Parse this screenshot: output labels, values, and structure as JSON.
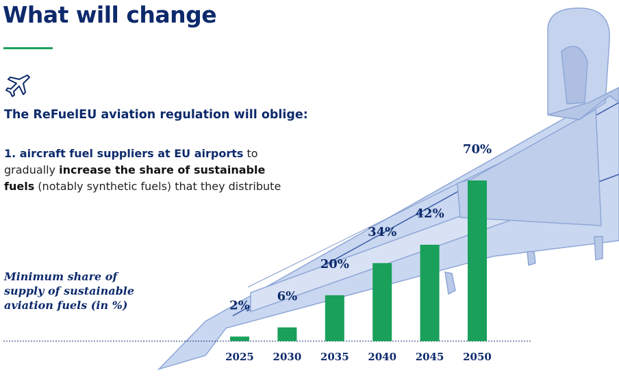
{
  "header": {
    "title": "What will change"
  },
  "intro": "The ReFuelEU aviation regulation will oblige:",
  "paragraph": {
    "p1": "1. aircraft fuel suppliers at EU airports",
    "p2": " to gradually ",
    "p3": "increase the share of sustainable fuels",
    "p4": " (notably synthetic fuels) that they distribute"
  },
  "colors": {
    "navy": "#0d2a6b",
    "green": "#1aa05a",
    "plane": "#b9c9e8"
  },
  "icons": {
    "header_icon": "airplane-icon"
  },
  "chart_data": {
    "type": "bar",
    "title": "Minimum share of supply of sustainable aviation fuels (in %)",
    "categories": [
      "2025",
      "2030",
      "2035",
      "2040",
      "2045",
      "2050"
    ],
    "values": [
      2,
      6,
      20,
      34,
      42,
      70
    ],
    "value_labels": [
      "2%",
      "6%",
      "20%",
      "34%",
      "42%",
      "70%"
    ],
    "unit": "%",
    "ylim": [
      0,
      70
    ],
    "grid": false,
    "legend": "none",
    "bar_color": "#1aa05a"
  }
}
